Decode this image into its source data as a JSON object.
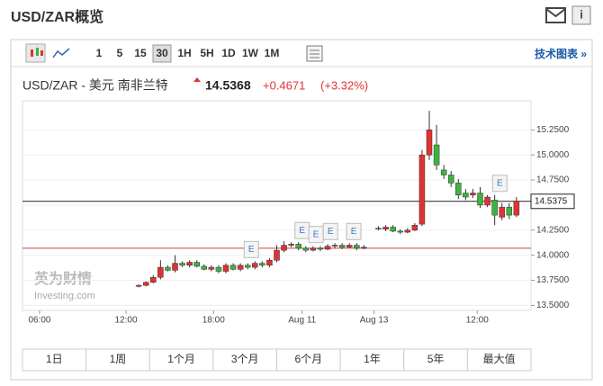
{
  "header": {
    "title": "USD/ZAR概览"
  },
  "toolbar": {
    "intervals": [
      "1",
      "5",
      "15",
      "30",
      "1H",
      "5H",
      "1D",
      "1W",
      "1M"
    ],
    "selected": "30",
    "link": "技术图表 »"
  },
  "quote": {
    "name": "USD/ZAR - 美元 南非兰特",
    "price": "14.5368",
    "change": "+0.4671",
    "change_pct": "(+3.32%)"
  },
  "chart_data": {
    "type": "candlestick",
    "up_color": "#e03232",
    "down_color": "#3cb43c",
    "x": [
      16,
      17,
      18,
      19,
      20,
      21,
      22,
      23,
      24,
      25,
      26,
      27,
      28,
      29,
      30,
      31,
      32,
      33,
      34,
      35,
      36,
      37,
      38,
      39,
      40,
      41,
      42,
      43,
      44,
      45,
      46,
      47,
      49,
      50,
      51,
      52,
      53,
      54,
      55,
      56,
      57,
      58,
      59,
      60,
      61,
      62,
      63,
      64,
      65,
      66,
      67,
      68
    ],
    "open": [
      13.69,
      13.7,
      13.73,
      13.78,
      13.88,
      13.85,
      13.92,
      13.9,
      13.93,
      13.89,
      13.86,
      13.88,
      13.84,
      13.9,
      13.86,
      13.9,
      13.88,
      13.92,
      13.9,
      13.95,
      14.05,
      14.1,
      14.11,
      14.07,
      14.05,
      14.07,
      14.06,
      14.09,
      14.1,
      14.08,
      14.1,
      14.07,
      14.27,
      14.26,
      14.28,
      14.24,
      14.23,
      14.25,
      14.31,
      15.0,
      15.1,
      14.85,
      14.8,
      14.72,
      14.62,
      14.6,
      14.62,
      14.5,
      14.55,
      14.38,
      14.48,
      14.4
    ],
    "high": [
      13.71,
      13.74,
      13.8,
      13.95,
      13.9,
      14.0,
      13.94,
      13.95,
      13.95,
      13.91,
      13.9,
      13.9,
      13.92,
      13.92,
      13.92,
      13.92,
      13.94,
      13.94,
      13.97,
      14.1,
      14.14,
      14.13,
      14.13,
      14.09,
      14.09,
      14.09,
      14.11,
      14.12,
      14.12,
      14.12,
      14.12,
      14.1,
      14.29,
      14.3,
      14.3,
      14.26,
      14.27,
      14.32,
      15.05,
      15.44,
      15.3,
      14.9,
      14.84,
      14.76,
      14.66,
      14.66,
      14.68,
      14.6,
      14.6,
      14.52,
      14.52,
      14.58
    ],
    "low": [
      13.68,
      13.69,
      13.72,
      13.76,
      13.84,
      13.83,
      13.88,
      13.88,
      13.88,
      13.85,
      13.84,
      13.82,
      13.82,
      13.85,
      13.84,
      13.86,
      13.86,
      13.88,
      13.88,
      13.93,
      14.03,
      14.08,
      14.05,
      14.03,
      14.04,
      14.04,
      14.05,
      14.07,
      14.06,
      14.07,
      14.05,
      14.06,
      14.25,
      14.24,
      14.23,
      14.21,
      14.22,
      14.24,
      14.29,
      14.95,
      14.85,
      14.76,
      14.68,
      14.56,
      14.55,
      14.57,
      14.47,
      14.48,
      14.3,
      14.35,
      14.36,
      14.38
    ],
    "close": [
      13.7,
      13.73,
      13.78,
      13.88,
      13.85,
      13.92,
      13.9,
      13.93,
      13.89,
      13.86,
      13.88,
      13.84,
      13.9,
      13.86,
      13.9,
      13.88,
      13.92,
      13.9,
      13.95,
      14.05,
      14.1,
      14.11,
      14.07,
      14.05,
      14.07,
      14.06,
      14.09,
      14.1,
      14.08,
      14.1,
      14.07,
      14.08,
      14.26,
      14.28,
      14.24,
      14.23,
      14.25,
      14.3,
      15.0,
      15.25,
      14.9,
      14.8,
      14.72,
      14.6,
      14.58,
      14.62,
      14.5,
      14.58,
      14.4,
      14.48,
      14.4,
      14.54
    ],
    "xlim": [
      0,
      70
    ],
    "xticks": [
      {
        "value": 2.35,
        "label": "06:00"
      },
      {
        "value": 14.25,
        "label": "12:00"
      },
      {
        "value": 26.3,
        "label": "18:00"
      },
      {
        "value": 38.5,
        "label": "Aug 11"
      },
      {
        "value": 48.4,
        "label": "Aug 13"
      },
      {
        "value": 62.6,
        "label": "12:00"
      }
    ],
    "ylim": [
      13.45,
      15.54
    ],
    "yticks": [
      {
        "value": 13.5,
        "label": "13.5000"
      },
      {
        "value": 13.75,
        "label": "13.7500"
      },
      {
        "value": 14,
        "label": "14.0000"
      },
      {
        "value": 14.25,
        "label": "14.2500"
      },
      {
        "value": 14.5,
        "label": "14.5000"
      },
      {
        "value": 14.75,
        "label": "14.7500"
      },
      {
        "value": 15,
        "label": "15.0000"
      },
      {
        "value": 15.25,
        "label": "15.2500"
      }
    ],
    "last_price": {
      "value": 14.5375,
      "label": "14.5375"
    },
    "reference_line": 14.07,
    "events": [
      {
        "x": 31.5,
        "label": "E"
      },
      {
        "x": 38.5,
        "label": "E"
      },
      {
        "x": 40.4,
        "label": "E"
      },
      {
        "x": 42.4,
        "label": "E"
      },
      {
        "x": 45.6,
        "label": "E"
      },
      {
        "x": 65.7,
        "label": "E"
      }
    ],
    "watermark": {
      "brand": "英为财情",
      "site": "Investing.com"
    }
  },
  "ranges": [
    "1日",
    "1周",
    "1个月",
    "3个月",
    "6个月",
    "1年",
    "5年",
    "最大值"
  ]
}
